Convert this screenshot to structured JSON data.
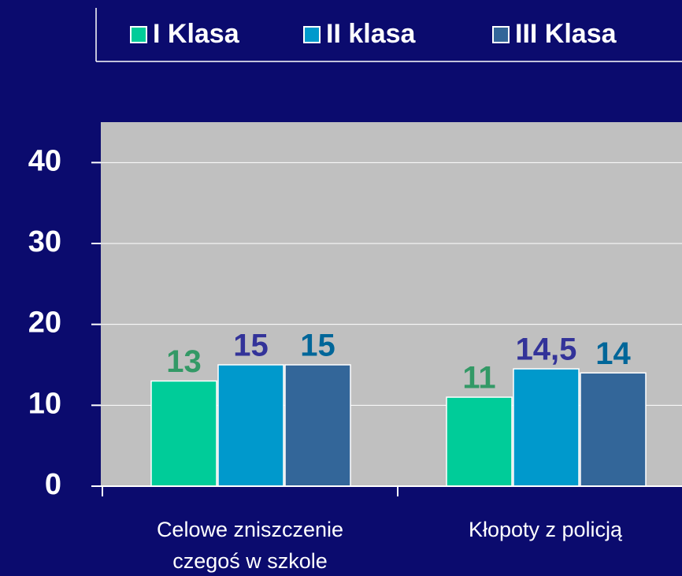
{
  "chart_data": {
    "type": "bar",
    "categories": [
      "Celowe zniszczenie czegoś w szkole",
      "Kłopoty z policją"
    ],
    "series": [
      {
        "name": "I Klasa",
        "color": "#00cc99",
        "label_color": "#339966",
        "values": [
          13,
          11
        ]
      },
      {
        "name": "II klasa",
        "color": "#0099cc",
        "label_color": "#333399",
        "values": [
          15,
          14.5
        ],
        "value_labels": [
          "15",
          "14,5"
        ]
      },
      {
        "name": "III Klasa",
        "color": "#336699",
        "label_color": "#006699",
        "values": [
          15,
          14
        ]
      }
    ],
    "ylim": [
      0,
      45
    ],
    "yticks": [
      0,
      10,
      20,
      30,
      40
    ],
    "grid": true,
    "legend": "top"
  }
}
